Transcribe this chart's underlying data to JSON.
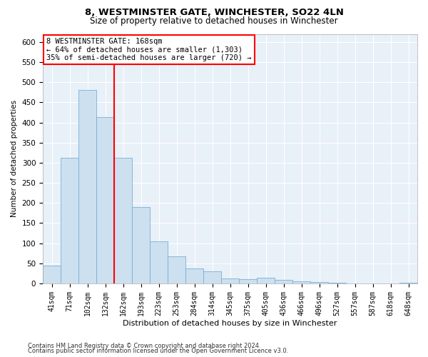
{
  "title": "8, WESTMINSTER GATE, WINCHESTER, SO22 4LN",
  "subtitle": "Size of property relative to detached houses in Winchester",
  "xlabel": "Distribution of detached houses by size in Winchester",
  "ylabel": "Number of detached properties",
  "bar_color": "#cce0f0",
  "bar_edge_color": "#7aafd4",
  "background_color": "#e8f0f8",
  "categories": [
    "41sqm",
    "71sqm",
    "102sqm",
    "132sqm",
    "162sqm",
    "193sqm",
    "223sqm",
    "253sqm",
    "284sqm",
    "314sqm",
    "345sqm",
    "375sqm",
    "405sqm",
    "436sqm",
    "466sqm",
    "496sqm",
    "527sqm",
    "557sqm",
    "587sqm",
    "618sqm",
    "648sqm"
  ],
  "values": [
    45,
    312,
    480,
    413,
    313,
    190,
    104,
    68,
    37,
    30,
    13,
    10,
    14,
    9,
    6,
    3,
    2,
    0,
    0,
    0,
    2
  ],
  "red_line_bin": 3,
  "ylim": [
    0,
    620
  ],
  "yticks": [
    0,
    50,
    100,
    150,
    200,
    250,
    300,
    350,
    400,
    450,
    500,
    550,
    600
  ],
  "annotation_title": "8 WESTMINSTER GATE: 168sqm",
  "annotation_line1": "← 64% of detached houses are smaller (1,303)",
  "annotation_line2": "35% of semi-detached houses are larger (720) →",
  "footer1": "Contains HM Land Registry data © Crown copyright and database right 2024.",
  "footer2": "Contains public sector information licensed under the Open Government Licence v3.0."
}
